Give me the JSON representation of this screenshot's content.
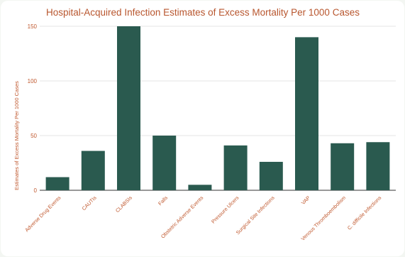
{
  "chart_data": {
    "type": "bar",
    "title": "Hospital-Acquired Infection Estimates of Excess Mortality Per 1000 Cases",
    "xlabel": "",
    "ylabel": "Estimates of Excess Mortality Per 1000 Cases",
    "ylim": [
      0,
      150
    ],
    "yticks": [
      0,
      50,
      100,
      150
    ],
    "grid": true,
    "legend": "none",
    "categories": [
      "Adverse Drug Events",
      "CAUTIs",
      "CLABSIs",
      "Falls",
      "Obstetric Adverse Events",
      "Pressure Ulcers",
      "Surgical Site Infections",
      "VAP",
      "Venous Thromboembolism",
      "C. difficile Infections"
    ],
    "values": [
      12,
      36,
      150,
      50,
      5,
      41,
      26,
      140,
      43,
      44
    ]
  },
  "colors": {
    "bar": "#2a5a4f",
    "text": "#c0592f",
    "grid": "#dcdcdc",
    "axis": "#333333",
    "card": "#ffffff",
    "background": "#f3f6f2"
  }
}
